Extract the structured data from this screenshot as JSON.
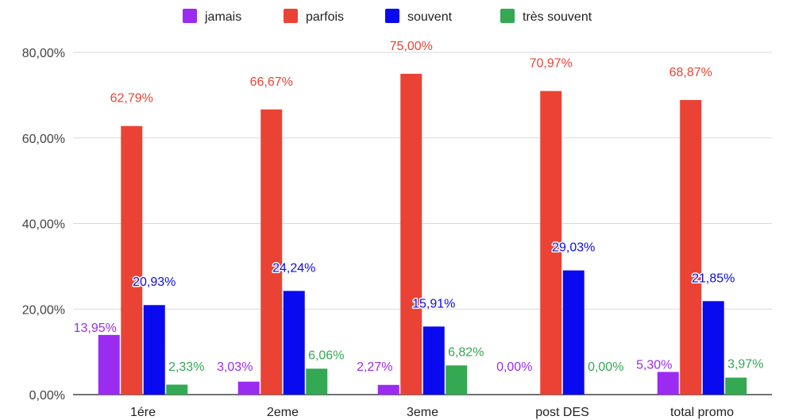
{
  "chart_data": {
    "type": "bar",
    "categories": [
      "1ére",
      "2eme",
      "3eme",
      "post DES",
      "total promo"
    ],
    "series": [
      {
        "name": "jamais",
        "color": "#9b2bf0",
        "values": [
          13.95,
          3.03,
          2.27,
          0.0,
          5.3
        ],
        "labels": [
          "13,95%",
          "3,03%",
          "2,27%",
          "0,00%",
          "5,30%"
        ]
      },
      {
        "name": "parfois",
        "color": "#ea4335",
        "values": [
          62.79,
          66.67,
          75.0,
          70.97,
          68.87
        ],
        "labels": [
          "62,79%",
          "66,67%",
          "75,00%",
          "70,97%",
          "68,87%"
        ]
      },
      {
        "name": "souvent",
        "color": "#0a0af0",
        "values": [
          20.93,
          24.24,
          15.91,
          29.03,
          21.85
        ],
        "labels": [
          "20,93%",
          "24,24%",
          "15,91%",
          "29,03%",
          "21,85%"
        ]
      },
      {
        "name": "très souvent",
        "color": "#34a853",
        "values": [
          2.33,
          6.06,
          6.82,
          0.0,
          3.97
        ],
        "labels": [
          "2,33%",
          "6,06%",
          "6,82%",
          "0,00%",
          "3,97%"
        ]
      }
    ],
    "y_ticks": [
      "0,00%",
      "20,00%",
      "40,00%",
      "60,00%",
      "80,00%"
    ],
    "ylim": [
      0,
      80
    ],
    "grid": true,
    "legend_position": "top-center",
    "title": "",
    "xlabel": "",
    "ylabel": ""
  }
}
